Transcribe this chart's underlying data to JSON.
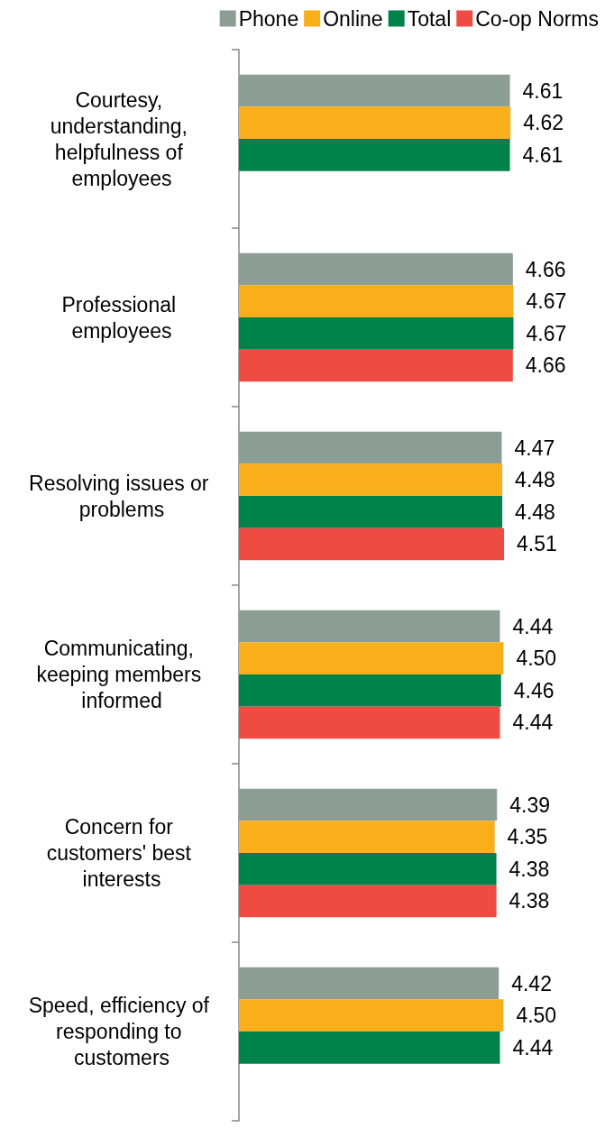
{
  "chart_data": {
    "type": "bar",
    "orientation": "horizontal",
    "categories": [
      "Courtesy, understanding, helpfulness of employees",
      "Professional employees",
      "Resolving issues or problems",
      "Communicating, keeping members informed",
      "Concern for customers' best interests",
      "Speed, efficiency of responding to customers"
    ],
    "series": [
      {
        "name": "Phone",
        "color": "#8c9e94",
        "values": [
          4.61,
          4.66,
          4.47,
          4.44,
          4.39,
          4.42
        ],
        "value_labels": [
          "4.61",
          "4.66",
          "4.47",
          "4.44",
          "4.39",
          "4.42"
        ]
      },
      {
        "name": "Online",
        "color": "#f9ae1c",
        "values": [
          4.62,
          4.67,
          4.48,
          4.5,
          4.35,
          4.5
        ],
        "value_labels": [
          "4.62",
          "4.67",
          "4.48",
          "4.50",
          "4.35",
          "4.50"
        ]
      },
      {
        "name": "Total",
        "color": "#00834a",
        "values": [
          4.61,
          4.67,
          4.48,
          4.46,
          4.38,
          4.44
        ],
        "value_labels": [
          "4.61",
          "4.67",
          "4.48",
          "4.46",
          "4.38",
          "4.44"
        ]
      },
      {
        "name": "Co-op Norms",
        "color": "#ee4b43",
        "values": [
          null,
          4.66,
          4.51,
          4.44,
          4.38,
          null
        ],
        "value_labels": [
          null,
          "4.66",
          "4.51",
          "4.44",
          "4.38",
          null
        ]
      }
    ],
    "legend": "top right",
    "tick_labels": "y"
  }
}
